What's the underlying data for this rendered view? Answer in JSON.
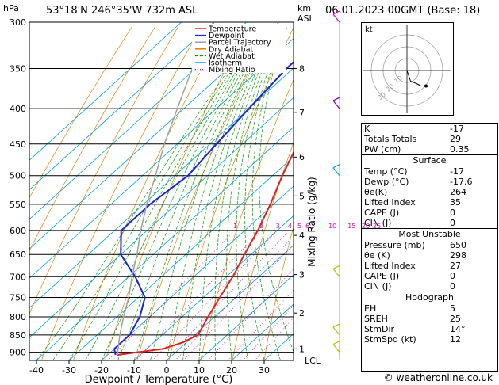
{
  "header": {
    "location": "53°18'N  246°35'W  732m  ASL",
    "datetime": "06.01.2023  00GMT  (Base: 18)"
  },
  "skewt": {
    "left_units": "hPa",
    "right_units_top": "km",
    "right_units_bottom": "ASL",
    "xlabel": "Dewpoint / Temperature (°C)",
    "mixing_ratio_label": "Mixing Ratio (g/kg)",
    "lcl_label": "LCL"
  },
  "chart_data": {
    "type": "line",
    "title": "",
    "xlabel": "Dewpoint / Temperature (°C)",
    "ylabel": "hPa",
    "pressure_levels": [
      300,
      350,
      400,
      450,
      500,
      550,
      600,
      650,
      700,
      750,
      800,
      850,
      900
    ],
    "temperature_ticks": [
      -40,
      -30,
      -20,
      -10,
      0,
      10,
      20,
      30
    ],
    "xlim": [
      -40,
      35
    ],
    "ylim": [
      300,
      925
    ],
    "km_ticks": [
      {
        "km": "1",
        "hpa": 890
      },
      {
        "km": "2",
        "hpa": 790
      },
      {
        "km": "3",
        "hpa": 695
      },
      {
        "km": "4",
        "hpa": 610
      },
      {
        "km": "5",
        "hpa": 535
      },
      {
        "km": "6",
        "hpa": 470
      },
      {
        "km": "7",
        "hpa": 405
      },
      {
        "km": "8",
        "hpa": 350
      }
    ],
    "mixing_ratio_values": [
      "1",
      "2",
      "3",
      "4",
      "5",
      "6",
      "10",
      "15",
      "20",
      "25"
    ],
    "legend": [
      "Temperature",
      "Dewpoint",
      "Parcel Trajectory",
      "Dry Adiabat",
      "Wet Adiabat",
      "Isotherm",
      "Mixing Ratio"
    ],
    "colors": {
      "temperature": "#e02020",
      "dewpoint": "#2020e0",
      "parcel": "#a0a0a0",
      "dry_adiabat": "#e08000",
      "wet_adiabat": "#00a000",
      "isotherm": "#00a0e0",
      "mixing_ratio": "#e000c0"
    },
    "series": [
      {
        "name": "Temperature",
        "points": [
          [
            908,
            -17
          ],
          [
            890,
            -5
          ],
          [
            870,
            -1
          ],
          [
            850,
            1
          ],
          [
            800,
            -2
          ],
          [
            750,
            -5
          ],
          [
            700,
            -8
          ],
          [
            650,
            -12
          ],
          [
            600,
            -16
          ],
          [
            550,
            -21
          ],
          [
            500,
            -27
          ],
          [
            450,
            -33
          ],
          [
            400,
            -40
          ],
          [
            350,
            -47
          ],
          [
            300,
            -54
          ]
        ]
      },
      {
        "name": "Dewpoint",
        "points": [
          [
            908,
            -17.6
          ],
          [
            890,
            -20
          ],
          [
            850,
            -20
          ],
          [
            800,
            -23
          ],
          [
            750,
            -28
          ],
          [
            700,
            -38
          ],
          [
            650,
            -50
          ],
          [
            600,
            -58
          ],
          [
            550,
            -58
          ],
          [
            500,
            -56
          ],
          [
            450,
            -58
          ],
          [
            400,
            -60
          ],
          [
            350,
            -62
          ],
          [
            300,
            -62
          ]
        ]
      },
      {
        "name": "Parcel Trajectory",
        "points": [
          [
            908,
            -17
          ],
          [
            850,
            -23
          ],
          [
            800,
            -28
          ],
          [
            750,
            -33
          ],
          [
            700,
            -39
          ],
          [
            650,
            -45
          ],
          [
            600,
            -52
          ],
          [
            550,
            -59
          ],
          [
            500,
            -66
          ],
          [
            450,
            -74
          ],
          [
            400,
            -82
          ],
          [
            350,
            -91
          ],
          [
            300,
            -100
          ]
        ]
      }
    ]
  },
  "hodograph": {
    "unit": "kt",
    "ring_labels": [
      "10",
      "20",
      "30"
    ],
    "points": [
      [
        0,
        0
      ],
      [
        1,
        3
      ],
      [
        2,
        6
      ],
      [
        3,
        9
      ],
      [
        8,
        11
      ],
      [
        12,
        13
      ],
      [
        16,
        13
      ]
    ]
  },
  "indices": {
    "top": [
      {
        "label": "K",
        "value": "-17"
      },
      {
        "label": "Totals Totals",
        "value": "29"
      },
      {
        "label": "PW (cm)",
        "value": "0.35"
      }
    ],
    "surface_title": "Surface",
    "surface": [
      {
        "label": "Temp (°C)",
        "value": "-17"
      },
      {
        "label": "Dewp (°C)",
        "value": "-17.6"
      },
      {
        "label": "θe(K)",
        "value": "264"
      },
      {
        "label": "Lifted Index",
        "value": "35"
      },
      {
        "label": "CAPE (J)",
        "value": "0"
      },
      {
        "label": "CIN (J)",
        "value": "0"
      }
    ],
    "unstable_title": "Most Unstable",
    "unstable": [
      {
        "label": "Pressure (mb)",
        "value": "650"
      },
      {
        "label": "θe (K)",
        "value": "298"
      },
      {
        "label": "Lifted Index",
        "value": "27"
      },
      {
        "label": "CAPE (J)",
        "value": "0"
      },
      {
        "label": "CIN (J)",
        "value": "0"
      }
    ],
    "hodo_title": "Hodograph",
    "hodo": [
      {
        "label": "EH",
        "value": "5"
      },
      {
        "label": "SREH",
        "value": "25"
      },
      {
        "label": "StmDir",
        "value": "14°"
      },
      {
        "label": "StmSpd (kt)",
        "value": "12"
      }
    ]
  },
  "footer": "© weatheronline.co.uk"
}
